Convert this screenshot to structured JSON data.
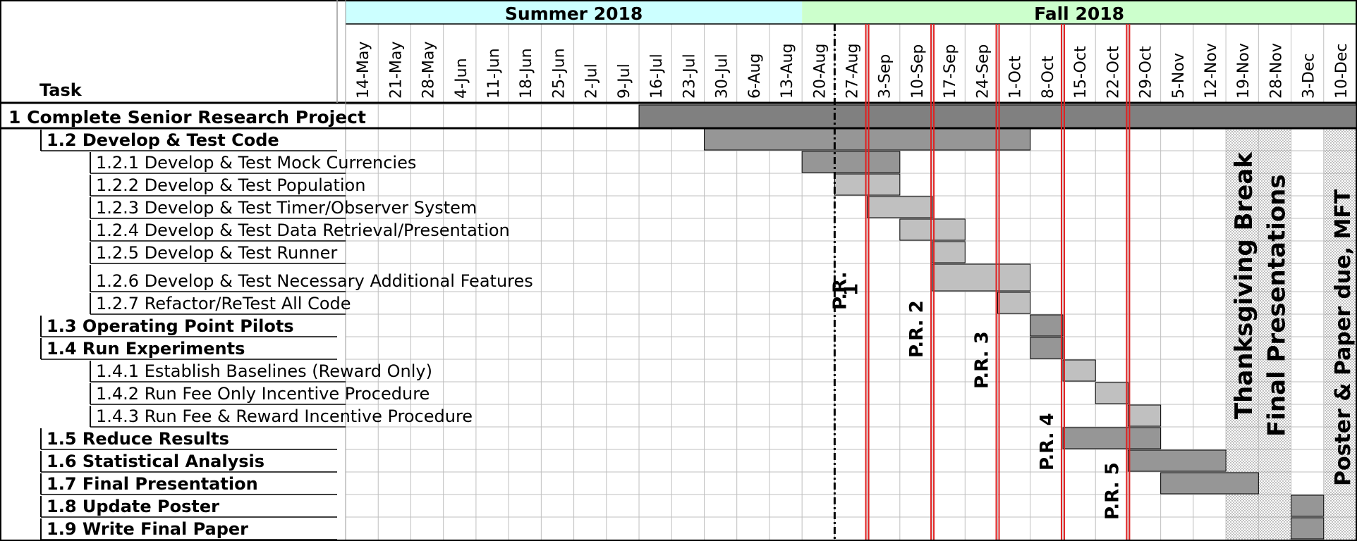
{
  "chart_data": {
    "type": "gantt",
    "task_header": "Task",
    "seasons": [
      {
        "label": "Summer 2018",
        "first_week": 0,
        "last_week": 13,
        "color": "#ccffff"
      },
      {
        "label": "Fall 2018",
        "first_week": 14,
        "last_week": 27,
        "color": "#ccffcc"
      }
    ],
    "weeks": [
      "14-May",
      "21-May",
      "28-May",
      "4-Jun",
      "11-Jun",
      "18-Jun",
      "25-Jun",
      "2-Jul",
      "9-Jul",
      "16-Jul",
      "23-Jul",
      "30-Jul",
      "6-Aug",
      "13-Aug",
      "20-Aug",
      "27-Aug",
      "3-Sep",
      "10-Sep",
      "17-Sep",
      "24-Sep",
      "1-Oct",
      "8-Oct",
      "15-Oct",
      "22-Oct",
      "29-Oct",
      "5-Nov",
      "12-Nov",
      "19-Nov",
      "28-Nov",
      "3-Dec",
      "10-Dec"
    ],
    "tasks": [
      {
        "label": "1 Complete Senior Research Project",
        "level": 0,
        "bold": true,
        "start": "16-Jul",
        "end": "10-Dec",
        "shade": "dark"
      },
      {
        "label": "1.2 Develop & Test Code",
        "level": 1,
        "bold": true,
        "start": "30-Jul",
        "end": "1-Oct",
        "shade": "mid"
      },
      {
        "label": "1.2.1 Develop & Test Mock Currencies",
        "level": 2,
        "bold": false,
        "start": "20-Aug",
        "end": "3-Sep",
        "shade": "mid"
      },
      {
        "label": "1.2.2 Develop & Test Population",
        "level": 2,
        "bold": false,
        "start": "27-Aug",
        "end": "3-Sep",
        "shade": "light"
      },
      {
        "label": "1.2.3 Develop & Test Timer/Observer System",
        "level": 2,
        "bold": false,
        "start": "3-Sep",
        "end": "10-Sep",
        "shade": "light"
      },
      {
        "label": "1.2.4 Develop & Test Data Retrieval/Presentation",
        "level": 2,
        "bold": false,
        "start": "10-Sep",
        "end": "17-Sep",
        "shade": "light"
      },
      {
        "label": "1.2.5 Develop & Test Runner",
        "level": 2,
        "bold": false,
        "start": "17-Sep",
        "end": "17-Sep",
        "shade": "light"
      },
      {
        "label": "1.2.6 Develop & Test Necessary Additional Features",
        "level": 2,
        "bold": false,
        "start": "17-Sep",
        "end": "1-Oct",
        "shade": "light"
      },
      {
        "label": "1.2.7 Refactor/ReTest All Code",
        "level": 2,
        "bold": false,
        "start": "1-Oct",
        "end": "1-Oct",
        "shade": "light"
      },
      {
        "label": "1.3 Operating Point Pilots",
        "level": 1,
        "bold": true,
        "start": "8-Oct",
        "end": "8-Oct",
        "shade": "mid"
      },
      {
        "label": "1.4 Run Experiments",
        "level": 1,
        "bold": true,
        "start": "8-Oct",
        "end": "8-Oct",
        "shade": "mid"
      },
      {
        "label": "1.4.1 Establish Baselines (Reward Only)",
        "level": 2,
        "bold": false,
        "start": "15-Oct",
        "end": "15-Oct",
        "shade": "light"
      },
      {
        "label": "1.4.2 Run Fee Only Incentive Procedure",
        "level": 2,
        "bold": false,
        "start": "22-Oct",
        "end": "22-Oct",
        "shade": "light"
      },
      {
        "label": "1.4.3 Run Fee & Reward Incentive Procedure",
        "level": 2,
        "bold": false,
        "start": "29-Oct",
        "end": "29-Oct",
        "shade": "light"
      },
      {
        "label": "1.5 Reduce Results",
        "level": 1,
        "bold": true,
        "start": "15-Oct",
        "end": "29-Oct",
        "shade": "mid"
      },
      {
        "label": "1.6 Statistical Analysis",
        "level": 1,
        "bold": true,
        "start": "29-Oct",
        "end": "12-Nov",
        "shade": "mid"
      },
      {
        "label": "1.7 Final Presentation",
        "level": 1,
        "bold": true,
        "start": "5-Nov",
        "end": "19-Nov",
        "shade": "mid"
      },
      {
        "label": "1.8 Update Poster",
        "level": 1,
        "bold": true,
        "start": "3-Dec",
        "end": "3-Dec",
        "shade": "mid"
      },
      {
        "label": "1.9 Write Final Paper",
        "level": 1,
        "bold": true,
        "start": "3-Dec",
        "end": "3-Dec",
        "shade": "mid"
      }
    ],
    "progress_reviews": [
      {
        "label": "P.R. 1",
        "week": "3-Sep"
      },
      {
        "label": "P.R. 2",
        "week": "17-Sep"
      },
      {
        "label": "P.R. 3",
        "week": "1-Oct"
      },
      {
        "label": "P.R. 4",
        "week": "15-Oct"
      },
      {
        "label": "P.R. 5",
        "week": "29-Oct"
      }
    ],
    "semester_start": {
      "label": "P.R.",
      "week": "27-Aug"
    },
    "breaks": [
      {
        "label": "Thanksgiving Break",
        "week": "19-Nov"
      },
      {
        "label": "Final Presentations",
        "week": "28-Nov"
      },
      {
        "label": "Poster & Paper due, MFT",
        "week": "10-Dec"
      }
    ],
    "colors": {
      "dark": "#808080",
      "mid": "#969696",
      "light": "#c0c0c0",
      "grid": "#bfbfbf",
      "milestone": "#e02020"
    }
  }
}
